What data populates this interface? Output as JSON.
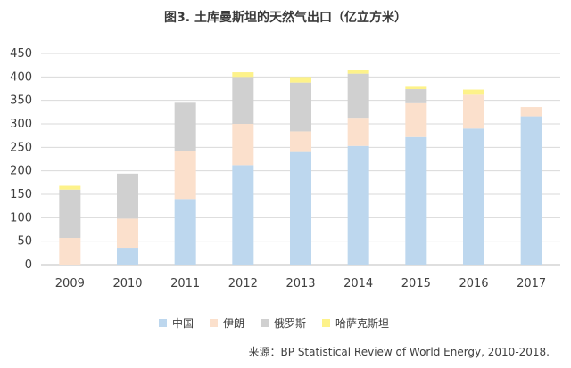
{
  "title": "图3. 土库曼斯坦的天然气出口（亿立方米）",
  "source": "来源：BP Statistical Review of World Energy, 2010-2018.",
  "chart_data": {
    "type": "bar",
    "stacked": true,
    "categories": [
      "2009",
      "2010",
      "2011",
      "2012",
      "2013",
      "2014",
      "2015",
      "2016",
      "2017"
    ],
    "series": [
      {
        "name": "中国",
        "color": "#bdd7ee",
        "values": [
          0,
          36,
          140,
          212,
          240,
          253,
          272,
          290,
          316
        ]
      },
      {
        "name": "伊朗",
        "color": "#fbe0cc",
        "values": [
          57,
          62,
          103,
          88,
          44,
          60,
          72,
          72,
          20
        ]
      },
      {
        "name": "俄罗斯",
        "color": "#d0d0d0",
        "values": [
          103,
          96,
          102,
          100,
          104,
          94,
          30,
          0,
          0
        ]
      },
      {
        "name": "哈萨克斯坦",
        "color": "#fdf28a",
        "values": [
          8,
          0,
          0,
          10,
          12,
          8,
          5,
          11,
          0
        ]
      }
    ],
    "ylim": [
      0,
      450
    ],
    "yticks": [
      0,
      50,
      100,
      150,
      200,
      250,
      300,
      350,
      400,
      450
    ],
    "xlabel": "",
    "ylabel": "",
    "grid": true,
    "legend_position": "bottom"
  }
}
